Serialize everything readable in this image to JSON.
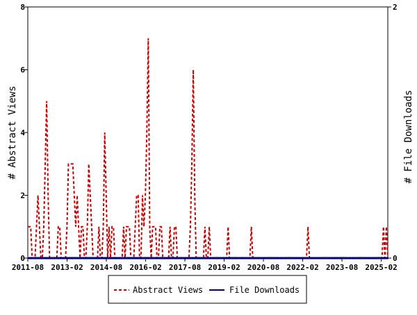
{
  "chart_data": {
    "type": "line",
    "x_ticks": [
      "2011-08",
      "2013-02",
      "2014-08",
      "2016-02",
      "2017-08",
      "2019-02",
      "2020-08",
      "2022-02",
      "2023-08",
      "2025-02"
    ],
    "y_left": {
      "label": "# Abstract Views",
      "ylim": [
        0,
        8
      ],
      "ticks": [
        "0",
        "2",
        "4",
        "6",
        "8"
      ]
    },
    "y_right": {
      "label": "# File Downloads",
      "ylim": [
        0,
        2
      ],
      "ticks": [
        "0",
        "2"
      ]
    },
    "series": [
      {
        "name": "Abstract Views",
        "color": "#cc0000",
        "dash": "dashed",
        "axis": "left",
        "x_range": [
          "2011-08",
          "2025-05"
        ],
        "values": [
          1,
          1,
          1,
          0,
          0,
          0,
          1,
          2,
          1,
          0,
          0,
          1,
          3,
          5,
          2,
          0,
          0,
          0,
          0,
          0,
          0,
          1,
          1,
          0,
          0,
          0,
          0,
          1,
          3,
          3,
          3,
          3,
          2,
          1,
          2,
          1,
          0,
          1,
          1,
          0,
          0,
          1,
          3,
          2,
          1,
          0,
          0,
          0,
          0,
          1,
          0,
          0,
          1,
          4,
          2,
          0,
          1,
          0,
          1,
          1,
          0,
          0,
          0,
          0,
          0,
          0,
          1,
          0,
          1,
          1,
          1,
          0,
          0,
          0,
          1,
          2,
          2,
          0,
          0,
          2,
          1,
          2,
          4,
          7,
          1,
          0,
          1,
          1,
          1,
          0,
          0,
          1,
          1,
          0,
          0,
          0,
          0,
          0,
          1,
          0,
          0,
          1,
          1,
          0,
          0,
          0,
          0,
          0,
          0,
          0,
          0,
          0,
          1,
          3,
          6,
          2,
          0,
          0,
          0,
          0,
          0,
          0,
          1,
          0,
          0,
          1,
          0,
          0,
          0,
          0,
          0,
          0,
          0,
          0,
          0,
          0,
          0,
          0,
          1,
          0,
          0,
          0,
          0,
          0,
          0,
          0,
          0,
          0,
          0,
          0,
          0,
          0,
          0,
          0,
          1,
          0,
          0,
          0,
          0,
          0,
          0,
          0,
          0,
          0,
          0,
          0,
          0,
          0,
          0,
          0,
          0,
          0,
          0,
          0,
          0,
          0,
          0,
          0,
          0,
          0,
          0,
          0,
          0,
          0,
          0,
          0,
          0,
          0,
          0,
          0,
          0,
          0,
          0,
          1,
          0,
          0,
          0,
          0,
          0,
          0,
          0,
          0,
          0,
          0,
          0,
          0,
          0,
          0,
          0,
          0,
          0,
          0,
          0,
          0,
          0,
          0,
          0,
          0,
          0,
          0,
          0,
          0,
          0,
          0,
          0,
          0,
          0,
          0,
          0,
          0,
          0,
          0,
          0,
          0,
          0,
          0,
          0,
          0,
          0,
          0,
          0,
          0,
          0,
          0,
          0,
          1,
          0,
          1,
          0
        ]
      },
      {
        "name": "File Downloads",
        "color": "#000080",
        "dash": "solid",
        "axis": "right",
        "x_range": [
          "2011-08",
          "2025-05"
        ],
        "values": [
          0,
          0,
          0,
          0,
          0,
          0,
          0,
          0,
          0,
          0,
          0,
          0,
          0,
          0,
          0,
          0,
          0,
          0,
          0,
          0,
          0,
          0,
          0,
          0,
          0,
          0,
          0,
          0,
          0,
          0,
          0,
          0,
          0,
          0,
          0,
          0,
          0,
          0,
          0,
          0,
          0,
          0,
          0,
          0,
          0,
          0,
          0,
          0,
          0,
          0,
          0,
          0,
          0,
          0,
          0,
          0,
          0,
          0,
          0,
          0,
          0,
          0,
          0,
          0,
          0,
          0,
          0,
          0,
          0,
          0,
          0,
          0,
          0,
          0,
          0,
          0,
          0,
          0,
          0,
          0,
          0,
          0,
          0,
          0,
          0,
          0,
          0,
          0,
          0,
          0,
          0,
          0,
          0,
          0,
          0,
          0,
          0,
          0,
          0,
          0,
          0,
          0,
          0,
          0,
          0,
          0,
          0,
          0,
          0,
          0,
          0,
          0,
          0,
          0,
          0,
          0,
          0,
          0,
          0,
          0,
          0,
          0,
          0,
          0,
          0,
          0,
          0,
          0,
          0,
          0,
          0,
          0,
          0,
          0,
          0,
          0,
          0,
          0,
          0,
          0,
          0,
          0,
          0,
          0,
          0,
          0,
          0,
          0,
          0,
          0,
          0,
          0,
          0,
          0,
          0,
          0,
          0,
          0,
          0,
          0,
          0,
          0,
          0,
          0,
          0,
          0,
          0,
          0,
          0,
          0,
          0,
          0,
          0,
          0,
          0,
          0,
          0,
          0,
          0,
          0,
          0,
          0,
          0,
          0,
          0,
          0,
          0,
          0,
          0,
          0,
          0,
          0,
          0,
          0,
          0,
          0,
          0,
          0,
          0,
          0,
          0,
          0,
          0,
          0,
          0,
          0,
          0,
          0,
          0,
          0,
          0,
          0,
          0,
          0,
          0,
          0,
          0,
          0,
          0,
          0,
          0,
          0,
          0,
          0,
          0,
          0,
          0,
          0,
          0,
          0,
          0,
          0,
          0,
          0,
          0,
          0,
          0,
          0,
          0,
          0,
          0,
          0,
          0,
          0,
          0,
          0,
          0,
          0,
          0,
          0,
          0,
          0,
          0,
          0,
          0,
          0,
          0,
          0,
          0,
          0,
          0,
          0,
          0,
          0,
          0,
          0,
          0,
          0,
          0,
          0
        ]
      }
    ],
    "legend": {
      "placement": "bottom-center",
      "entries": [
        "Abstract Views",
        "File Downloads"
      ]
    },
    "grid": false
  }
}
